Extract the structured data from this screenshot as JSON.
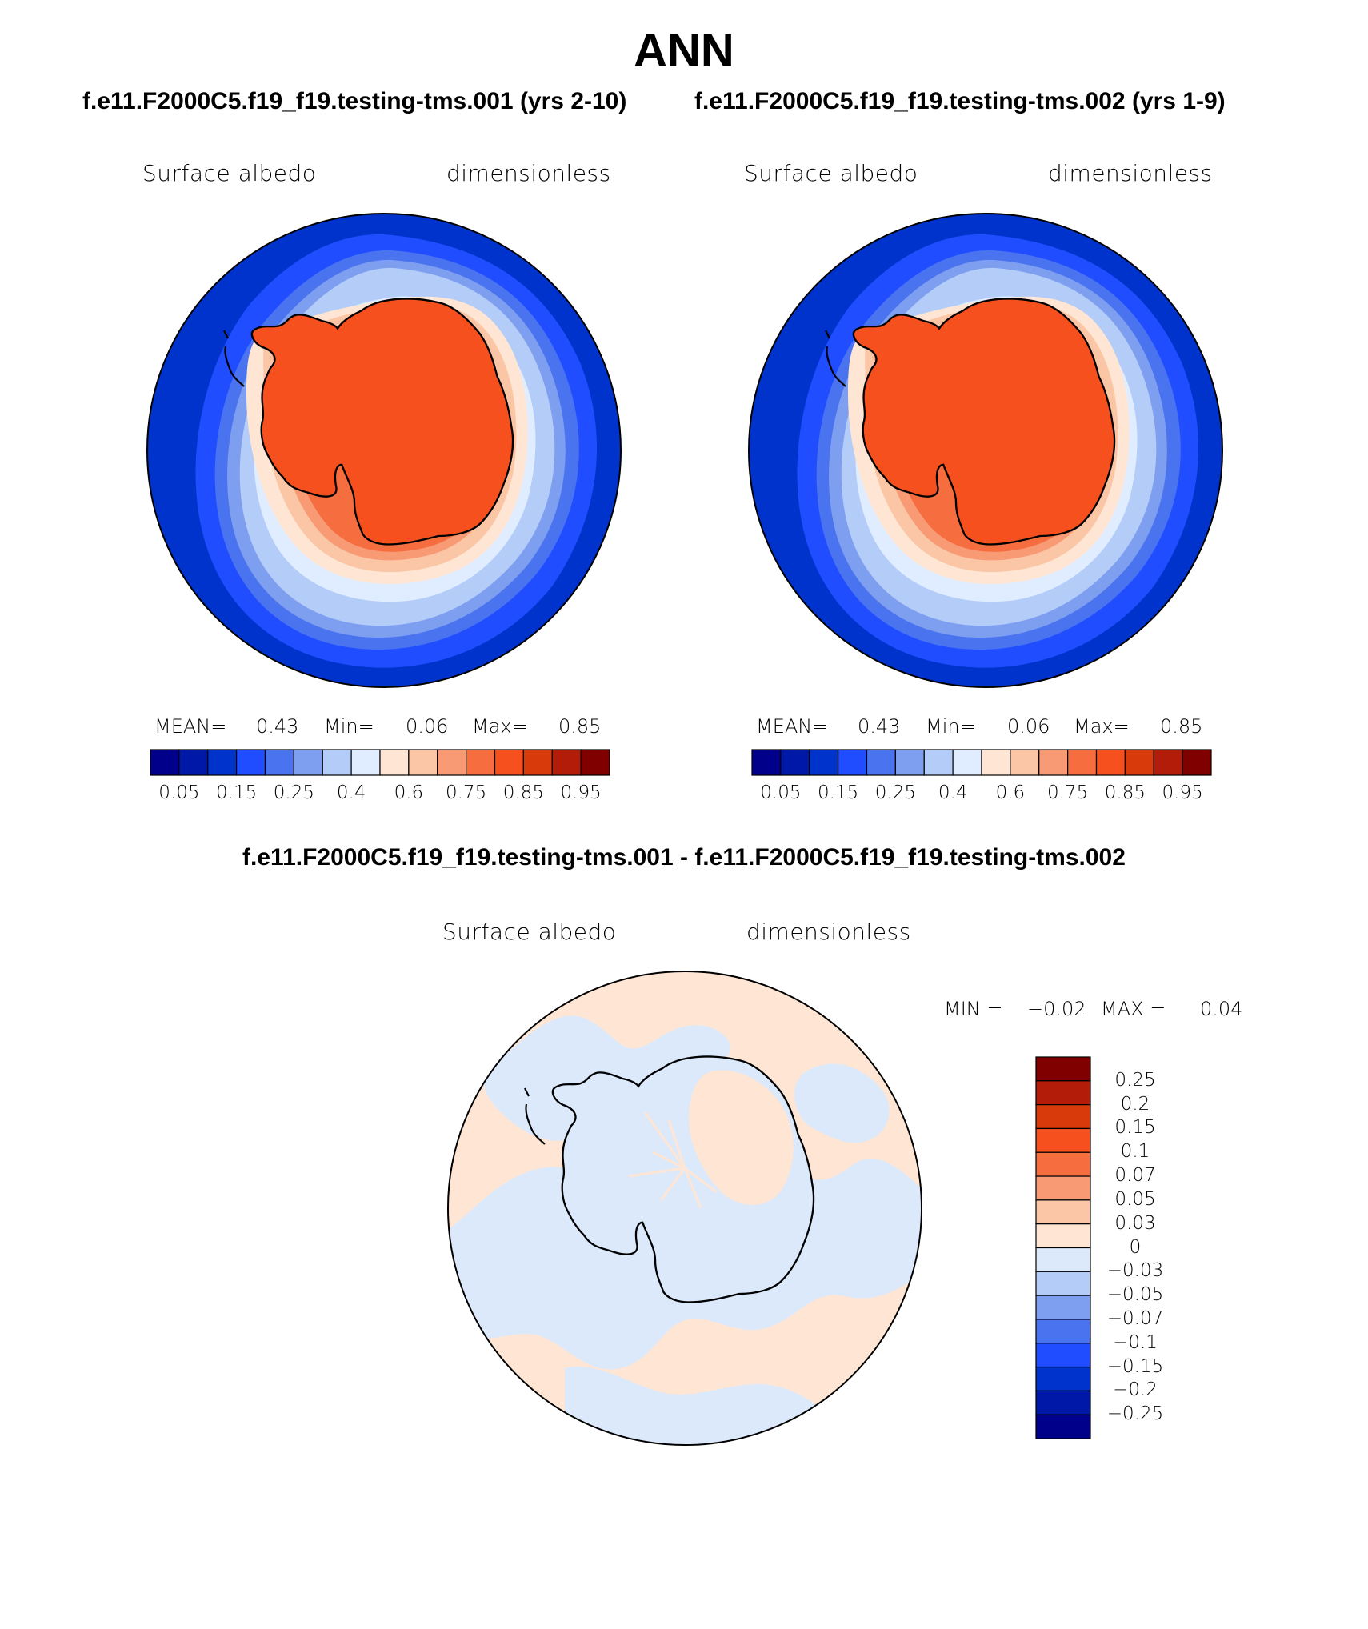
{
  "title": "ANN",
  "panels": [
    {
      "case_title": "f.e11.F2000C5.f19_f19.testing-tms.001 (yrs 2-10)",
      "variable": "Surface albedo",
      "units": "dimensionless",
      "stats": {
        "mean_label": "MEAN=",
        "mean": "0.43",
        "min_label": "Min=",
        "min": "0.06",
        "max_label": "Max=",
        "max": "0.85"
      }
    },
    {
      "case_title": "f.e11.F2000C5.f19_f19.testing-tms.002 (yrs 1-9)",
      "variable": "Surface albedo",
      "units": "dimensionless",
      "stats": {
        "mean_label": "MEAN=",
        "mean": "0.43",
        "min_label": "Min=",
        "min": "0.06",
        "max_label": "Max=",
        "max": "0.85"
      }
    }
  ],
  "abs_colorbar": {
    "colors": [
      "#00008a",
      "#0018a8",
      "#0033cc",
      "#1f4dff",
      "#4a73ef",
      "#7e9ef0",
      "#b4ccf8",
      "#e0ecff",
      "#ffe6d4",
      "#fbc6a6",
      "#f89a74",
      "#f66e40",
      "#f5501e",
      "#d83a0c",
      "#b21c08",
      "#800000"
    ],
    "tick_labels": [
      "0.05",
      "0.15",
      "0.25",
      "0.4",
      "0.6",
      "0.75",
      "0.85",
      "0.95"
    ]
  },
  "difference": {
    "title": "f.e11.F2000C5.f19_f19.testing-tms.001 - f.e11.F2000C5.f19_f19.testing-tms.002",
    "variable": "Surface albedo",
    "units": "dimensionless",
    "min_label": "MIN =",
    "min": "−0.02",
    "max_label": "MAX =",
    "max": "0.04",
    "colors_top_to_bottom": [
      "#800000",
      "#b21c08",
      "#d83a0c",
      "#f5501e",
      "#f66e40",
      "#f89a74",
      "#fbc6a6",
      "#ffe6d4",
      "#dbe9fb",
      "#b4ccf8",
      "#7e9ef0",
      "#4a73ef",
      "#1f4dff",
      "#0033cc",
      "#0018a8",
      "#00008a"
    ],
    "tick_labels": [
      "0.25",
      "0.2",
      "0.15",
      "0.1",
      "0.07",
      "0.05",
      "0.03",
      "0",
      "−0.03",
      "−0.05",
      "−0.07",
      "−0.1",
      "−0.15",
      "−0.2",
      "−0.25"
    ]
  },
  "chart_data": {
    "type": "heatmap",
    "projection": "south polar stereographic",
    "field": "Surface albedo",
    "units": "dimensionless",
    "season": "ANN",
    "contour_levels": [
      0.05,
      0.1,
      0.15,
      0.2,
      0.25,
      0.3,
      0.4,
      0.5,
      0.6,
      0.7,
      0.75,
      0.8,
      0.85,
      0.9,
      0.95
    ],
    "difference_levels": [
      -0.25,
      -0.2,
      -0.15,
      -0.1,
      -0.07,
      -0.05,
      -0.03,
      0,
      0.03,
      0.05,
      0.07,
      0.1,
      0.15,
      0.2,
      0.25
    ],
    "case1": {
      "mean": 0.43,
      "min": 0.06,
      "max": 0.85
    },
    "case2": {
      "mean": 0.43,
      "min": 0.06,
      "max": 0.85
    },
    "difference": {
      "min": -0.02,
      "max": 0.04
    }
  }
}
